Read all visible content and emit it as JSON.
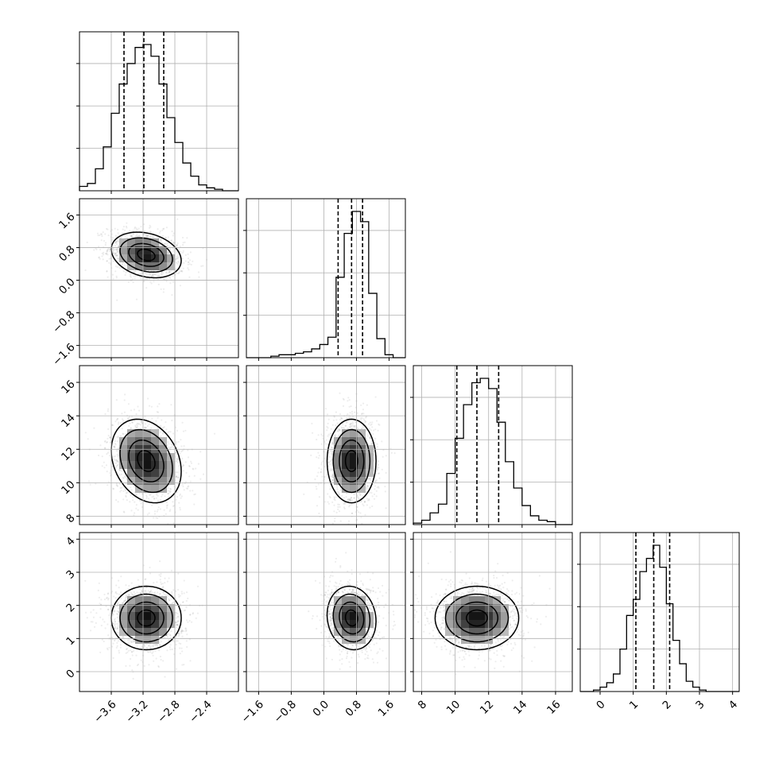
{
  "chart_data": {
    "type": "corner",
    "grid": true,
    "parameters": [
      {
        "id": "p0",
        "range": [
          -4.0,
          -2.0
        ],
        "ticks": [
          "-3.6",
          "-3.2",
          "-2.8",
          "-2.4"
        ],
        "tick_values": [
          -3.6,
          -3.2,
          -2.8,
          -2.4
        ],
        "quantiles": [
          -3.44,
          -3.19,
          -2.94
        ],
        "mean": -3.16,
        "std": 0.22,
        "hist_edges": [
          -4.0,
          -3.9,
          -3.8,
          -3.7,
          -3.6,
          -3.5,
          -3.4,
          -3.3,
          -3.2,
          -3.1,
          -3.0,
          -2.9,
          -2.8,
          -2.7,
          -2.6,
          -2.5,
          -2.4,
          -2.3,
          -2.2,
          -2.1,
          -2.0
        ],
        "hist_counts": [
          0.03,
          0.05,
          0.15,
          0.3,
          0.53,
          0.73,
          0.87,
          0.98,
          1.0,
          0.92,
          0.73,
          0.5,
          0.33,
          0.19,
          0.1,
          0.04,
          0.02,
          0.01,
          0.0,
          0.0
        ]
      },
      {
        "id": "p1",
        "range": [
          -1.9,
          2.0
        ],
        "ticks": [
          "-1.6",
          "-0.8",
          "0.0",
          "0.8",
          "1.6"
        ],
        "tick_values": [
          -1.6,
          -0.8,
          0.0,
          0.8,
          1.6
        ],
        "quantiles": [
          0.35,
          0.68,
          0.95
        ],
        "mean": 0.65,
        "std": 0.35,
        "hist_edges": [
          -1.9,
          -1.7,
          -1.5,
          -1.3,
          -1.1,
          -0.9,
          -0.7,
          -0.5,
          -0.3,
          -0.1,
          0.1,
          0.3,
          0.5,
          0.7,
          0.9,
          1.1,
          1.3,
          1.5,
          1.7,
          1.9,
          2.0
        ],
        "hist_counts": [
          0.0,
          0.0,
          0.0,
          0.01,
          0.02,
          0.02,
          0.03,
          0.04,
          0.06,
          0.09,
          0.14,
          0.55,
          0.85,
          1.0,
          0.93,
          0.44,
          0.13,
          0.02,
          0.0,
          0.0
        ]
      },
      {
        "id": "p2",
        "range": [
          7.5,
          17.0
        ],
        "ticks": [
          "8",
          "10",
          "12",
          "14",
          "16"
        ],
        "tick_values": [
          8,
          10,
          12,
          14,
          16
        ],
        "quantiles": [
          10.1,
          11.3,
          12.6
        ],
        "mean": 11.3,
        "std": 1.25,
        "hist_edges": [
          7.5,
          8.0,
          8.5,
          9.0,
          9.5,
          10.0,
          10.5,
          11.0,
          11.5,
          12.0,
          12.5,
          13.0,
          13.5,
          14.0,
          14.5,
          15.0,
          15.5,
          16.0,
          16.5,
          17.0
        ],
        "hist_counts": [
          0.01,
          0.03,
          0.08,
          0.14,
          0.35,
          0.59,
          0.82,
          0.97,
          1.0,
          0.93,
          0.7,
          0.43,
          0.25,
          0.13,
          0.06,
          0.03,
          0.02,
          0.0,
          0.0
        ]
      },
      {
        "id": "p3",
        "range": [
          -0.6,
          4.2
        ],
        "ticks": [
          "0",
          "1",
          "2",
          "3",
          "4"
        ],
        "tick_values": [
          0,
          1,
          2,
          3,
          4
        ],
        "quantiles": [
          1.08,
          1.62,
          2.1
        ],
        "mean": 1.62,
        "std": 0.48,
        "hist_edges": [
          -0.6,
          -0.4,
          -0.2,
          0.0,
          0.2,
          0.4,
          0.6,
          0.8,
          1.0,
          1.2,
          1.4,
          1.6,
          1.8,
          2.0,
          2.2,
          2.4,
          2.6,
          2.8,
          3.0,
          3.2,
          3.4,
          3.6,
          3.8,
          4.0,
          4.2
        ],
        "hist_counts": [
          0.0,
          0.0,
          0.01,
          0.03,
          0.06,
          0.12,
          0.29,
          0.52,
          0.63,
          0.82,
          0.91,
          1.0,
          0.85,
          0.6,
          0.35,
          0.19,
          0.07,
          0.03,
          0.01,
          0.0,
          0.0,
          0.0,
          0.0,
          0.0
        ]
      }
    ],
    "pairs": [
      {
        "row": 1,
        "col": 0,
        "x_center": -3.16,
        "y_center": 0.62,
        "sx": 0.22,
        "sy": 0.28,
        "rho": -0.25
      },
      {
        "row": 2,
        "col": 0,
        "x_center": -3.16,
        "y_center": 11.3,
        "sx": 0.22,
        "sy": 1.25,
        "rho": -0.25
      },
      {
        "row": 2,
        "col": 1,
        "x_center": 0.68,
        "y_center": 11.3,
        "sx": 0.3,
        "sy": 1.25,
        "rho": 0.0
      },
      {
        "row": 3,
        "col": 0,
        "x_center": -3.16,
        "y_center": 1.62,
        "sx": 0.22,
        "sy": 0.48,
        "rho": 0.0
      },
      {
        "row": 3,
        "col": 1,
        "x_center": 0.68,
        "y_center": 1.62,
        "sx": 0.3,
        "sy": 0.48,
        "rho": -0.1
      },
      {
        "row": 3,
        "col": 2,
        "x_center": 11.3,
        "y_center": 1.62,
        "sx": 1.25,
        "sy": 0.48,
        "rho": 0.0
      }
    ],
    "contour_levels": [
      0.5,
      1.0,
      1.5,
      2.0
    ]
  }
}
